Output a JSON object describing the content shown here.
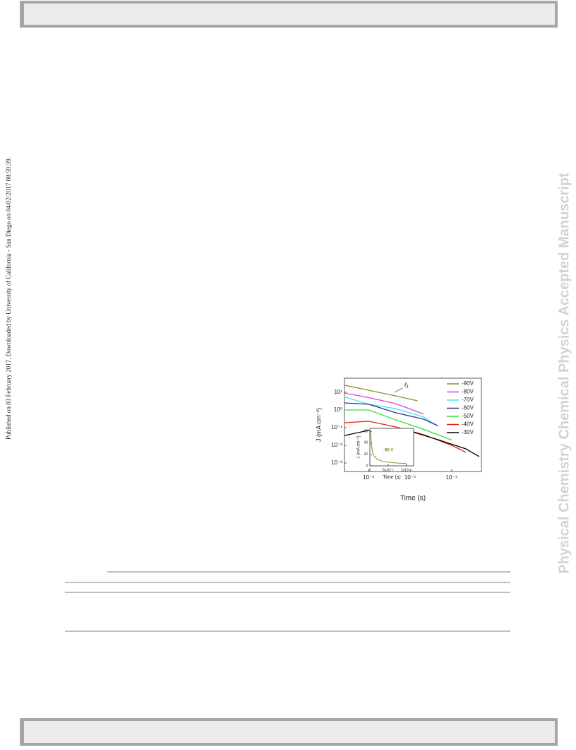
{
  "sidebar_left": "Published on 03 February 2017. Downloaded by University of California - San Diego on 04/02/2017 08:59:39.",
  "watermark": "Physical Chemistry Chemical Physics Accepted Manuscript",
  "chart_data": [
    {
      "type": "line",
      "xlabel": "Time (s)",
      "ylabel": "J (mA cm⁻²)",
      "annotation": "ℓ₁",
      "x_log": true,
      "y_log": true,
      "legend": "upper right",
      "xlim": [
        2.6e-07,
        0.00052
      ],
      "ylim": [
        0.00033,
        63
      ],
      "xticks": [
        {
          "value": 1e-06,
          "label": "10⁻⁶"
        },
        {
          "value": 1e-05,
          "label": "10⁻⁵"
        },
        {
          "value": 0.0001,
          "label": "10⁻⁴"
        }
      ],
      "yticks": [
        {
          "value": 0.001,
          "label": "10⁻³"
        },
        {
          "value": 0.01,
          "label": "10⁻²"
        },
        {
          "value": 0.1,
          "label": "10⁻¹"
        },
        {
          "value": 1,
          "label": "10⁰"
        },
        {
          "value": 10,
          "label": "10¹"
        }
      ],
      "series": [
        {
          "name": "-90V",
          "color": "#8c8c2a",
          "x": [
            2.6e-07,
            1e-06,
            4.4e-06,
            1.5e-05
          ],
          "values": [
            25,
            13,
            6.3,
            3.3
          ]
        },
        {
          "name": "-80V",
          "color": "#e040e0",
          "x": [
            2.6e-07,
            1e-06,
            4.4e-06,
            2.1e-05
          ],
          "values": [
            9,
            5,
            2.3,
            0.58
          ]
        },
        {
          "name": "-70V",
          "color": "#40e8f0",
          "x": [
            2.6e-07,
            1e-06,
            4.4e-06,
            2.1e-05,
            4.6e-05
          ],
          "values": [
            5.5,
            2.1,
            1.2,
            0.4,
            0.12
          ]
        },
        {
          "name": "-60V",
          "color": "#303090",
          "x": [
            2.6e-07,
            1e-06,
            4.4e-06,
            2.1e-05,
            4.6e-05
          ],
          "values": [
            2.5,
            2.1,
            0.7,
            0.3,
            0.13
          ]
        },
        {
          "name": "-50V",
          "color": "#30e030",
          "x": [
            2.6e-07,
            1e-06,
            4.4e-06,
            2.1e-05,
            0.0001
          ],
          "values": [
            1,
            1,
            0.28,
            0.08,
            0.02
          ]
        },
        {
          "name": "-40V",
          "color": "#e02020",
          "x": [
            2.6e-07,
            1e-06,
            4.4e-06,
            2.1e-05,
            0.0001,
            0.00022
          ],
          "values": [
            0.19,
            0.23,
            0.11,
            0.04,
            0.01,
            0.004
          ]
        },
        {
          "name": "-30V",
          "color": "#000000",
          "x": [
            2.6e-07,
            1e-06,
            3e-06,
            1e-05,
            4.6e-05,
            0.00022,
            0.00046
          ],
          "values": [
            0.036,
            0.07,
            0.09,
            0.063,
            0.021,
            0.0063,
            0.0023
          ]
        }
      ]
    },
    {
      "type": "line",
      "xlabel": "Time (s)",
      "ylabel": "J (mA cm⁻²)",
      "annotation": "-90 V",
      "xlim": [
        0,
        1.2e-05
      ],
      "ylim": [
        0,
        65
      ],
      "xticks": [
        0,
        {
          "value": 5e-06,
          "label": "5x10⁻⁶"
        },
        {
          "value": 1e-05,
          "label": "1x10⁻⁵"
        }
      ],
      "yticks": [
        0,
        20,
        40,
        60
      ],
      "series": [
        {
          "color": "#8c8c2a",
          "x": [
            2e-07,
            4e-07,
            7e-07,
            1e-06,
            2e-06,
            4e-06,
            7e-06,
            1e-05
          ],
          "values": [
            60,
            40,
            25,
            18,
            11,
            7,
            5,
            4
          ]
        }
      ]
    }
  ]
}
